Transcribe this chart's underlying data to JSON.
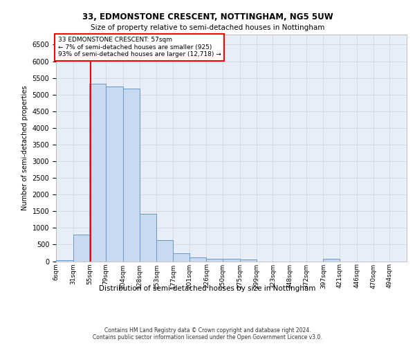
{
  "title_line1": "33, EDMONSTONE CRESCENT, NOTTINGHAM, NG5 5UW",
  "title_line2": "Size of property relative to semi-detached houses in Nottingham",
  "xlabel": "Distribution of semi-detached houses by size in Nottingham",
  "ylabel": "Number of semi-detached properties",
  "footer_line1": "Contains HM Land Registry data © Crown copyright and database right 2024.",
  "footer_line2": "Contains public sector information licensed under the Open Government Licence v3.0.",
  "annotation_line1": "33 EDMONSTONE CRESCENT: 57sqm",
  "annotation_line2": "← 7% of semi-detached houses are smaller (925)",
  "annotation_line3": "93% of semi-detached houses are larger (12,718) →",
  "subject_size": 57,
  "bar_color": "#c8d9f0",
  "bar_edge_color": "#6699cc",
  "vline_color": "red",
  "grid_color": "#d0d8e8",
  "background_color": "#e8eef8",
  "categories": [
    "6sqm",
    "31sqm",
    "55sqm",
    "79sqm",
    "104sqm",
    "128sqm",
    "153sqm",
    "177sqm",
    "201sqm",
    "226sqm",
    "250sqm",
    "275sqm",
    "299sqm",
    "323sqm",
    "348sqm",
    "372sqm",
    "397sqm",
    "421sqm",
    "446sqm",
    "470sqm",
    "494sqm"
  ],
  "bin_edges": [
    6,
    31,
    55,
    79,
    104,
    128,
    153,
    177,
    201,
    226,
    250,
    275,
    299,
    323,
    348,
    372,
    397,
    421,
    446,
    470,
    494,
    519
  ],
  "values": [
    40,
    790,
    5330,
    5250,
    5190,
    1420,
    630,
    240,
    110,
    80,
    65,
    60,
    0,
    0,
    0,
    0,
    75,
    0,
    0,
    0,
    0
  ],
  "ylim": [
    0,
    6800
  ],
  "yticks": [
    0,
    500,
    1000,
    1500,
    2000,
    2500,
    3000,
    3500,
    4000,
    4500,
    5000,
    5500,
    6000,
    6500
  ]
}
